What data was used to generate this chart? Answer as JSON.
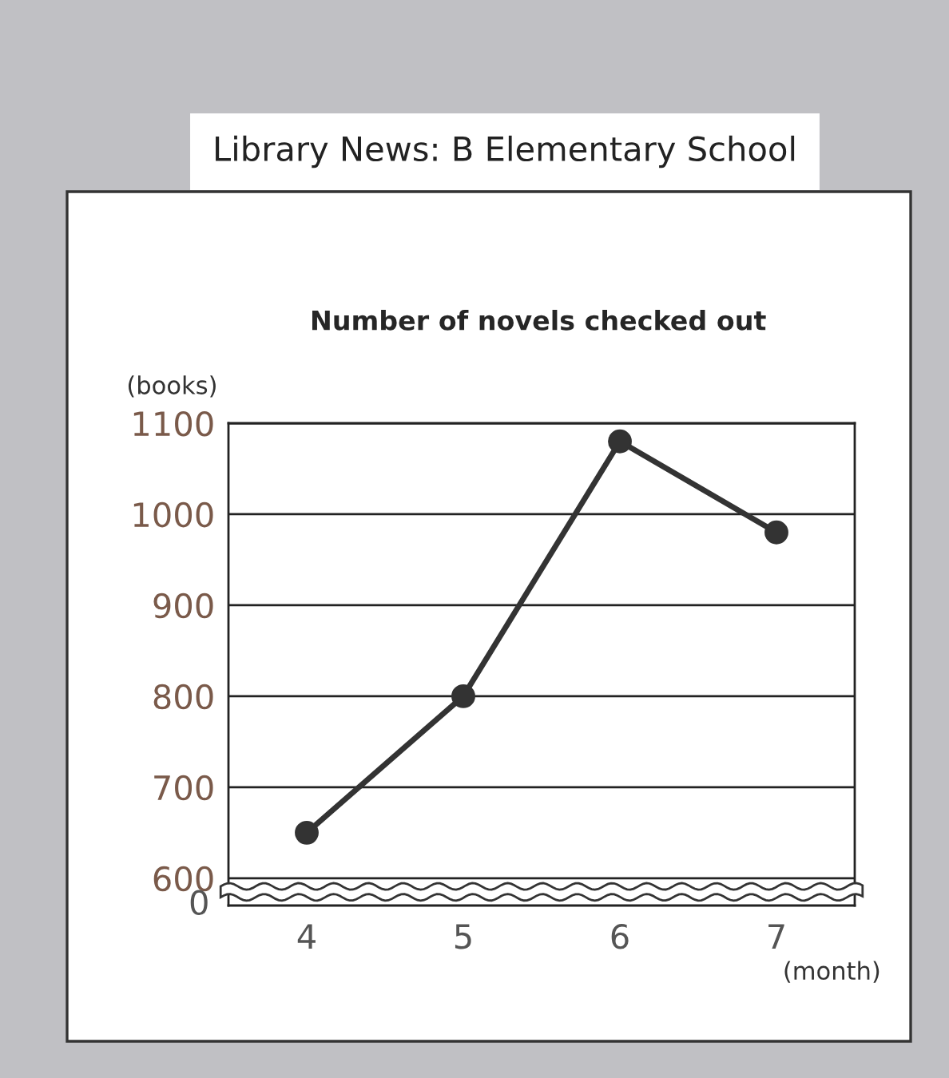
{
  "chart_data": {
    "type": "line",
    "title": "Library News: B Elementary School",
    "subtitle": "Number of novels checked out",
    "xlabel": "(month)",
    "ylabel": "(books)",
    "annotations": [
      "0"
    ],
    "categories": [
      "4",
      "5",
      "6",
      "7"
    ],
    "series": [
      {
        "color": "#333333",
        "values": [
          650,
          800,
          1080,
          980
        ]
      }
    ],
    "ylim": [
      570,
      1100
    ],
    "yticks": [
      600,
      700,
      800,
      900,
      1000,
      1100
    ],
    "grid": "y",
    "marker": "circle",
    "line_style": "solid",
    "legend": false
  }
}
